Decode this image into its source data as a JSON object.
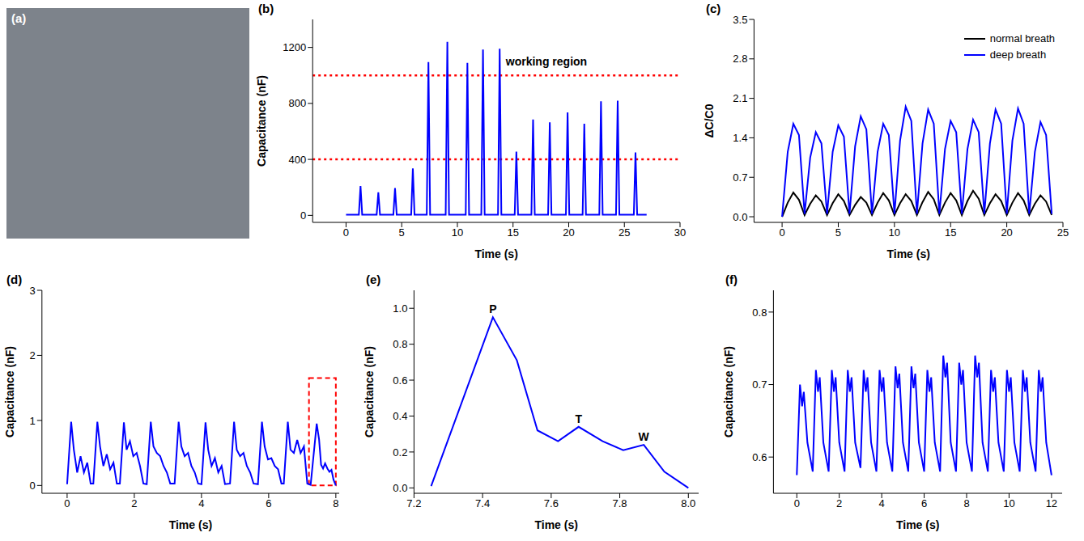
{
  "chart_data": [
    {
      "type": "image",
      "label": "(a)"
    },
    {
      "type": "line",
      "label": "(b)",
      "x_label": "Time (s)",
      "y_label": "Capacitance (nF)",
      "grid": false,
      "xlim": [
        -3,
        30
      ],
      "xticks": [
        0,
        5,
        10,
        15,
        20,
        25,
        30
      ],
      "ylim": [
        -50,
        1400
      ],
      "yticks": [
        0,
        400,
        800,
        1200
      ],
      "x": [
        0,
        1.15,
        1.3,
        1.45,
        2.75,
        2.9,
        3.05,
        4.25,
        4.4,
        4.55,
        5.85,
        6.0,
        6.15,
        7.25,
        7.4,
        7.55,
        8.95,
        9.1,
        9.25,
        10.75,
        10.9,
        11.05,
        12.15,
        12.3,
        12.45,
        13.65,
        13.8,
        13.95,
        15.15,
        15.3,
        15.45,
        16.65,
        16.8,
        16.95,
        18.15,
        18.3,
        18.45,
        19.75,
        19.9,
        20.05,
        21.25,
        21.4,
        21.55,
        22.75,
        22.9,
        23.05,
        24.25,
        24.4,
        24.55,
        25.85,
        26.0,
        26.15,
        27
      ],
      "values": [
        5,
        5,
        210,
        5,
        5,
        165,
        5,
        5,
        195,
        5,
        5,
        335,
        5,
        5,
        1095,
        5,
        5,
        1240,
        5,
        5,
        1090,
        5,
        5,
        1185,
        5,
        5,
        1190,
        5,
        5,
        455,
        5,
        5,
        685,
        5,
        5,
        665,
        5,
        5,
        735,
        5,
        5,
        655,
        5,
        5,
        815,
        5,
        5,
        820,
        5,
        5,
        450,
        5,
        5
      ],
      "color": "#0000ff",
      "reference_lines": [
        {
          "value": 1000,
          "color": "#ff0000"
        },
        {
          "value": 400,
          "color": "#ff0000"
        }
      ],
      "annotations": [
        {
          "text": "working region",
          "x": 18,
          "y": 1100
        }
      ]
    },
    {
      "type": "line",
      "label": "(c)",
      "x_label": "Time (s)",
      "y_label": "ΔC/C0",
      "grid": false,
      "legend": "upper right",
      "xlim": [
        -2.5,
        25
      ],
      "xticks": [
        0,
        5,
        10,
        15,
        20,
        25
      ],
      "ylim": [
        -0.1,
        3.5
      ],
      "yticks": [
        {
          "value": 0,
          "label": "0.0"
        },
        {
          "value": 0.7,
          "label": "0.7"
        },
        {
          "value": 1.4,
          "label": "1.4"
        },
        {
          "value": 2.1,
          "label": "2.1"
        },
        {
          "value": 2.8,
          "label": "2.8"
        },
        {
          "value": 3.5,
          "label": "3.5"
        }
      ],
      "x": [
        0,
        0.5,
        1,
        1.5,
        2,
        2.5,
        3,
        3.5,
        4,
        4.5,
        5,
        5.5,
        6,
        6.5,
        7,
        7.5,
        8,
        8.5,
        9,
        9.5,
        10,
        10.5,
        11,
        11.5,
        12,
        12.5,
        13,
        13.5,
        14,
        14.5,
        15,
        15.5,
        16,
        16.5,
        17,
        17.5,
        18,
        18.5,
        19,
        19.5,
        20,
        20.5,
        21,
        21.5,
        22,
        22.5,
        23,
        23.5,
        24
      ],
      "series": [
        {
          "name": "normal breath",
          "color": "#000000",
          "values": [
            0.0,
            0.25,
            0.43,
            0.3,
            0.03,
            0.23,
            0.38,
            0.27,
            0.03,
            0.24,
            0.4,
            0.28,
            0.03,
            0.21,
            0.35,
            0.25,
            0.03,
            0.25,
            0.42,
            0.29,
            0.03,
            0.24,
            0.4,
            0.28,
            0.03,
            0.26,
            0.44,
            0.31,
            0.03,
            0.25,
            0.42,
            0.29,
            0.03,
            0.28,
            0.46,
            0.32,
            0.03,
            0.24,
            0.4,
            0.28,
            0.03,
            0.25,
            0.42,
            0.29,
            0.03,
            0.23,
            0.38,
            0.27,
            0.03
          ]
        },
        {
          "name": "deep breath",
          "color": "#0000ff",
          "values": [
            0.0,
            1.15,
            1.65,
            1.45,
            0.05,
            1.05,
            1.5,
            1.3,
            0.05,
            1.15,
            1.62,
            1.42,
            0.05,
            1.25,
            1.78,
            1.55,
            0.05,
            1.15,
            1.65,
            1.45,
            0.05,
            1.35,
            1.95,
            1.7,
            0.05,
            1.3,
            1.9,
            1.65,
            0.05,
            1.2,
            1.7,
            1.5,
            0.05,
            1.2,
            1.72,
            1.5,
            0.05,
            1.3,
            1.9,
            1.65,
            0.05,
            1.35,
            1.92,
            1.65,
            0.05,
            1.15,
            1.68,
            1.45,
            0.05
          ]
        }
      ]
    },
    {
      "type": "line",
      "label": "(d)",
      "x_label": "Time (s)",
      "y_label": "Capacitance (nF)",
      "grid": false,
      "xlim": [
        -0.75,
        8.1
      ],
      "xticks": [
        0,
        2,
        4,
        6,
        8
      ],
      "ylim": [
        -0.12,
        3
      ],
      "yticks": [
        0,
        1,
        2,
        3
      ],
      "x": [
        0,
        0.12,
        0.2,
        0.3,
        0.4,
        0.5,
        0.6,
        0.7,
        0.78,
        0.9,
        0.98,
        1.08,
        1.18,
        1.28,
        1.38,
        1.48,
        1.57,
        1.69,
        1.77,
        1.87,
        1.97,
        2.07,
        2.17,
        2.27,
        2.37,
        2.49,
        2.57,
        2.67,
        2.77,
        2.87,
        2.97,
        3.07,
        3.2,
        3.32,
        3.4,
        3.5,
        3.6,
        3.7,
        3.8,
        3.9,
        4.0,
        4.12,
        4.2,
        4.3,
        4.4,
        4.5,
        4.6,
        4.7,
        4.85,
        4.97,
        5.05,
        5.15,
        5.25,
        5.35,
        5.45,
        5.55,
        5.68,
        5.8,
        5.88,
        5.98,
        6.08,
        6.18,
        6.28,
        6.38,
        6.45,
        6.57,
        6.65,
        6.75,
        6.85,
        6.95,
        7.05,
        7.15,
        7.25,
        7.43,
        7.5,
        7.56,
        7.62,
        7.68,
        7.75,
        7.81,
        7.87,
        7.93,
        8.0
      ],
      "values": [
        0.02,
        0.98,
        0.55,
        0.2,
        0.45,
        0.2,
        0.35,
        0.03,
        0.03,
        0.98,
        0.6,
        0.3,
        0.48,
        0.25,
        0.35,
        0.03,
        0.03,
        0.97,
        0.55,
        0.68,
        0.45,
        0.5,
        0.3,
        0.03,
        0.02,
        0.98,
        0.6,
        0.5,
        0.45,
        0.3,
        0.2,
        0.03,
        0.03,
        0.98,
        0.6,
        0.45,
        0.5,
        0.3,
        0.2,
        0.03,
        0.02,
        0.97,
        0.55,
        0.3,
        0.42,
        0.2,
        0.3,
        0.02,
        0.03,
        0.98,
        0.55,
        0.45,
        0.5,
        0.3,
        0.2,
        0.03,
        0.02,
        0.98,
        0.6,
        0.4,
        0.42,
        0.3,
        0.25,
        0.03,
        0.03,
        0.98,
        0.55,
        0.5,
        0.7,
        0.5,
        0.6,
        0.03,
        0.01,
        0.95,
        0.71,
        0.32,
        0.26,
        0.34,
        0.26,
        0.21,
        0.24,
        0.09,
        0.0
      ],
      "color": "#0000ff",
      "zoom_box": {
        "x": [
          7.2,
          8.0
        ],
        "y": [
          0,
          1.65
        ],
        "color": "#ff0000"
      }
    },
    {
      "type": "line",
      "label": "(e)",
      "x_label": "Time (s)",
      "y_label": "Capacitance (nF)",
      "grid": false,
      "xlim": [
        7.2,
        8.03
      ],
      "xticks": [
        7.2,
        7.4,
        7.6,
        7.8,
        {
          "value": 8,
          "label": "8.0"
        }
      ],
      "ylim": [
        -0.03,
        1.1
      ],
      "yticks": [
        {
          "value": 0,
          "label": "0.0"
        },
        {
          "value": 0.2,
          "label": "0.2"
        },
        {
          "value": 0.4,
          "label": "0.4"
        },
        {
          "value": 0.6,
          "label": "0.6"
        },
        {
          "value": 0.8,
          "label": "0.8"
        },
        {
          "value": 1,
          "label": "1.0"
        }
      ],
      "x": [
        7.25,
        7.43,
        7.5,
        7.56,
        7.62,
        7.68,
        7.75,
        7.81,
        7.87,
        7.93,
        8.0
      ],
      "values": [
        0.01,
        0.95,
        0.71,
        0.32,
        0.26,
        0.34,
        0.26,
        0.21,
        0.24,
        0.09,
        0.0
      ],
      "color": "#0000ff",
      "annotations": [
        {
          "text": "P",
          "x": 7.43,
          "y": 0.95
        },
        {
          "text": "T",
          "x": 7.68,
          "y": 0.34
        },
        {
          "text": "W",
          "x": 7.87,
          "y": 0.24
        }
      ]
    },
    {
      "type": "line",
      "label": "(f)",
      "x_label": "Time (s)",
      "y_label": "Capacitance (nF)",
      "grid": false,
      "xlim": [
        -1.1,
        12.5
      ],
      "xticks": [
        0,
        2,
        4,
        6,
        8,
        10,
        12
      ],
      "ylim": [
        0.55,
        0.83
      ],
      "yticks": [
        0.6,
        0.7,
        0.8
      ],
      "x": [
        0,
        0.15,
        0.25,
        0.33,
        0.5,
        0.75,
        0.9,
        1.0,
        1.08,
        1.25,
        1.5,
        1.65,
        1.75,
        1.83,
        2.0,
        2.25,
        2.4,
        2.5,
        2.58,
        2.75,
        3.0,
        3.15,
        3.25,
        3.33,
        3.5,
        3.75,
        3.9,
        4.0,
        4.08,
        4.25,
        4.5,
        4.65,
        4.75,
        4.83,
        5.0,
        5.25,
        5.4,
        5.5,
        5.58,
        5.75,
        6.0,
        6.15,
        6.25,
        6.33,
        6.5,
        6.75,
        6.9,
        7.0,
        7.08,
        7.25,
        7.5,
        7.65,
        7.75,
        7.83,
        8.0,
        8.25,
        8.4,
        8.5,
        8.58,
        8.75,
        9.0,
        9.15,
        9.25,
        9.33,
        9.5,
        9.75,
        9.9,
        10.0,
        10.08,
        10.25,
        10.5,
        10.65,
        10.75,
        10.83,
        11.0,
        11.25,
        11.4,
        11.5,
        11.58,
        11.75,
        12.0
      ],
      "values": [
        0.575,
        0.7,
        0.67,
        0.69,
        0.62,
        0.58,
        0.72,
        0.69,
        0.71,
        0.62,
        0.58,
        0.72,
        0.69,
        0.71,
        0.62,
        0.58,
        0.72,
        0.69,
        0.71,
        0.62,
        0.585,
        0.72,
        0.69,
        0.71,
        0.62,
        0.58,
        0.72,
        0.69,
        0.71,
        0.62,
        0.58,
        0.725,
        0.695,
        0.715,
        0.62,
        0.58,
        0.725,
        0.695,
        0.715,
        0.62,
        0.58,
        0.72,
        0.69,
        0.71,
        0.62,
        0.58,
        0.74,
        0.71,
        0.73,
        0.62,
        0.58,
        0.73,
        0.7,
        0.72,
        0.62,
        0.58,
        0.74,
        0.71,
        0.73,
        0.62,
        0.58,
        0.72,
        0.69,
        0.71,
        0.62,
        0.58,
        0.72,
        0.69,
        0.71,
        0.62,
        0.58,
        0.72,
        0.69,
        0.71,
        0.62,
        0.58,
        0.72,
        0.69,
        0.71,
        0.62,
        0.575
      ],
      "color": "#0000ff"
    }
  ]
}
